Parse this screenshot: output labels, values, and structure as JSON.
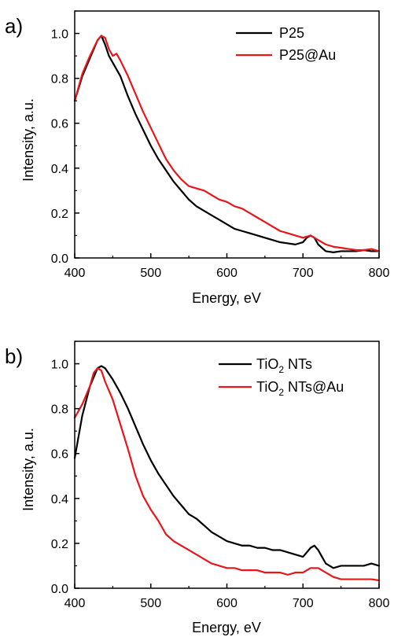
{
  "chart_data": [
    {
      "type": "line",
      "panel_label": "a)",
      "xlabel": "Energy, eV",
      "ylabel": "Intensity, a.u.",
      "xlim": [
        400,
        800
      ],
      "ylim": [
        0,
        1.1
      ],
      "xticks": [
        400,
        500,
        600,
        700,
        800
      ],
      "yticks": [
        0.0,
        0.2,
        0.4,
        0.6,
        0.8,
        1.0
      ],
      "legend_position": "top-right",
      "series": [
        {
          "name": "P25",
          "color": "#000000",
          "x": [
            400,
            410,
            420,
            430,
            435,
            440,
            445,
            450,
            460,
            470,
            480,
            490,
            500,
            510,
            520,
            530,
            540,
            550,
            560,
            570,
            580,
            590,
            600,
            610,
            620,
            630,
            640,
            650,
            660,
            670,
            680,
            690,
            700,
            705,
            710,
            715,
            720,
            730,
            740,
            750,
            760,
            770,
            780,
            790,
            800
          ],
          "y": [
            0.7,
            0.81,
            0.89,
            0.97,
            0.99,
            0.95,
            0.9,
            0.87,
            0.81,
            0.72,
            0.64,
            0.57,
            0.5,
            0.44,
            0.39,
            0.34,
            0.3,
            0.26,
            0.23,
            0.21,
            0.19,
            0.17,
            0.15,
            0.13,
            0.12,
            0.11,
            0.1,
            0.09,
            0.08,
            0.07,
            0.065,
            0.06,
            0.07,
            0.09,
            0.1,
            0.09,
            0.06,
            0.03,
            0.025,
            0.03,
            0.03,
            0.03,
            0.035,
            0.03,
            0.03
          ]
        },
        {
          "name": "P25@Au",
          "color": "#e8161b",
          "x": [
            400,
            410,
            420,
            430,
            435,
            440,
            445,
            450,
            455,
            460,
            470,
            480,
            490,
            500,
            510,
            520,
            530,
            540,
            550,
            560,
            570,
            580,
            590,
            600,
            610,
            620,
            630,
            640,
            650,
            660,
            670,
            680,
            690,
            700,
            710,
            720,
            730,
            740,
            750,
            760,
            770,
            780,
            790,
            800
          ],
          "y": [
            0.7,
            0.82,
            0.9,
            0.97,
            0.99,
            0.98,
            0.93,
            0.9,
            0.91,
            0.88,
            0.81,
            0.73,
            0.65,
            0.58,
            0.51,
            0.44,
            0.39,
            0.35,
            0.32,
            0.31,
            0.3,
            0.28,
            0.26,
            0.25,
            0.23,
            0.22,
            0.2,
            0.18,
            0.16,
            0.14,
            0.12,
            0.11,
            0.1,
            0.09,
            0.1,
            0.08,
            0.06,
            0.05,
            0.045,
            0.04,
            0.035,
            0.035,
            0.04,
            0.03
          ]
        }
      ]
    },
    {
      "type": "line",
      "panel_label": "b)",
      "xlabel": "Energy, eV",
      "ylabel": "Intensity, a.u.",
      "xlim": [
        400,
        800
      ],
      "ylim": [
        0,
        1.1
      ],
      "xticks": [
        400,
        500,
        600,
        700,
        800
      ],
      "yticks": [
        0.0,
        0.2,
        0.4,
        0.6,
        0.8,
        1.0
      ],
      "legend_position": "top-right",
      "series": [
        {
          "name": "TiO2 NTs",
          "label_main": "TiO",
          "label_sub": "2",
          "label_rest": " NTs",
          "color": "#000000",
          "x": [
            400,
            410,
            420,
            430,
            435,
            440,
            450,
            460,
            470,
            480,
            490,
            500,
            510,
            520,
            530,
            540,
            550,
            560,
            570,
            580,
            590,
            600,
            610,
            620,
            630,
            640,
            650,
            660,
            670,
            680,
            690,
            700,
            710,
            715,
            720,
            730,
            740,
            750,
            760,
            770,
            780,
            790,
            800
          ],
          "y": [
            0.58,
            0.77,
            0.9,
            0.98,
            0.99,
            0.98,
            0.93,
            0.87,
            0.8,
            0.72,
            0.64,
            0.57,
            0.51,
            0.46,
            0.41,
            0.37,
            0.33,
            0.31,
            0.28,
            0.25,
            0.23,
            0.21,
            0.2,
            0.19,
            0.19,
            0.18,
            0.18,
            0.17,
            0.17,
            0.16,
            0.15,
            0.14,
            0.18,
            0.19,
            0.17,
            0.11,
            0.09,
            0.1,
            0.1,
            0.1,
            0.1,
            0.11,
            0.1
          ]
        },
        {
          "name": "TiO2 NTs@Au",
          "label_main": "TiO",
          "label_sub": "2",
          "label_rest": " NTs@Au",
          "color": "#e8161b",
          "x": [
            400,
            410,
            420,
            425,
            430,
            435,
            440,
            450,
            460,
            470,
            480,
            490,
            500,
            510,
            520,
            530,
            540,
            550,
            560,
            570,
            580,
            590,
            600,
            610,
            620,
            630,
            640,
            650,
            660,
            670,
            680,
            690,
            700,
            710,
            720,
            730,
            740,
            750,
            760,
            770,
            780,
            790,
            800
          ],
          "y": [
            0.76,
            0.82,
            0.9,
            0.96,
            0.98,
            0.97,
            0.92,
            0.84,
            0.73,
            0.62,
            0.5,
            0.41,
            0.35,
            0.3,
            0.24,
            0.21,
            0.19,
            0.17,
            0.15,
            0.13,
            0.11,
            0.1,
            0.09,
            0.09,
            0.08,
            0.08,
            0.08,
            0.07,
            0.07,
            0.07,
            0.06,
            0.07,
            0.07,
            0.09,
            0.09,
            0.07,
            0.05,
            0.04,
            0.04,
            0.04,
            0.04,
            0.04,
            0.035
          ]
        }
      ]
    }
  ]
}
